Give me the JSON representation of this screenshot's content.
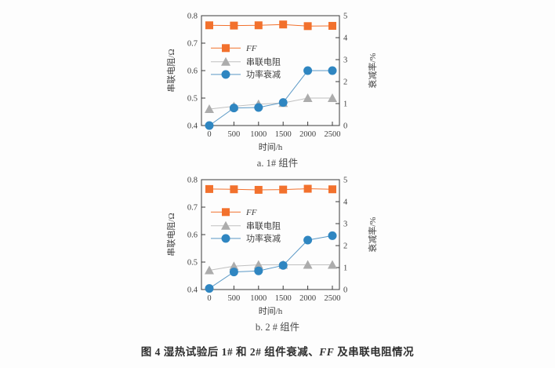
{
  "figure": {
    "caption": {
      "prefix": "图 4 湿热试验后 1# 和 2# 组件衰减、",
      "italic": "FF",
      "suffix": " 及串联电阻情况"
    }
  },
  "style": {
    "background": "#fdfdfd",
    "axis_color": "#3a3a3a",
    "text_color": "#3f3f3f",
    "ff_color": "#f2712d",
    "resistance_marker_color": "#acacac",
    "resistance_line_color": "#c0c0c0",
    "decay_marker_color": "#2f86c1",
    "decay_line_color": "#5b99c6"
  },
  "chart_data": [
    {
      "type": "line",
      "subtitle": "a. 1# 组件",
      "xlabel": "时间/h",
      "ylabel_left": "串联电阻/Ω",
      "ylabel_right": "衰减率/%",
      "x": [
        0,
        500,
        1000,
        1500,
        2000,
        2500
      ],
      "xlim": [
        0,
        2500
      ],
      "ylim_left": [
        0.4,
        0.8
      ],
      "yticks_left": [
        0.4,
        0.5,
        0.6,
        0.7,
        0.8
      ],
      "ylim_right": [
        0,
        5
      ],
      "yticks_right": [
        0,
        1,
        2,
        3,
        4,
        5
      ],
      "grid": false,
      "legend_position": "inside-upper-left",
      "series": [
        {
          "key": "ff",
          "name": "FF",
          "italic": true,
          "axis": "left",
          "marker": "square",
          "color": "#f2712d",
          "line_color": "#f2712d",
          "values": [
            0.765,
            0.764,
            0.765,
            0.768,
            0.762,
            0.763
          ]
        },
        {
          "key": "series-resistance",
          "name": "串联电阻",
          "axis": "left",
          "marker": "triangle",
          "color": "#acacac",
          "line_color": "#c0c0c0",
          "values": [
            0.46,
            0.47,
            0.478,
            0.482,
            0.5,
            0.5
          ]
        },
        {
          "key": "power-decay",
          "name": "功率衰减",
          "axis": "right",
          "marker": "circle",
          "color": "#2f86c1",
          "line_color": "#5b99c6",
          "values": [
            0,
            0.8,
            0.82,
            1.05,
            2.5,
            2.5
          ]
        }
      ]
    },
    {
      "type": "line",
      "subtitle": "b. 2 # 组件",
      "xlabel": "时间/h",
      "ylabel_left": "串联电阻/Ω",
      "ylabel_right": "衰减率/%",
      "x": [
        0,
        500,
        1000,
        1500,
        2000,
        2500
      ],
      "xlim": [
        0,
        2500
      ],
      "ylim_left": [
        0.4,
        0.8
      ],
      "yticks_left": [
        0.4,
        0.5,
        0.6,
        0.7,
        0.8
      ],
      "ylim_right": [
        0,
        5
      ],
      "yticks_right": [
        0,
        1,
        2,
        3,
        4,
        5
      ],
      "grid": false,
      "legend_position": "inside-upper-left",
      "series": [
        {
          "key": "ff",
          "name": "FF",
          "italic": true,
          "axis": "left",
          "marker": "square",
          "color": "#f2712d",
          "line_color": "#f2712d",
          "values": [
            0.766,
            0.765,
            0.763,
            0.764,
            0.767,
            0.765
          ]
        },
        {
          "key": "series-resistance",
          "name": "串联电阻",
          "axis": "left",
          "marker": "triangle",
          "color": "#acacac",
          "line_color": "#c0c0c0",
          "values": [
            0.47,
            0.485,
            0.49,
            0.49,
            0.49,
            0.49
          ]
        },
        {
          "key": "power-decay",
          "name": "功率衰减",
          "axis": "right",
          "marker": "circle",
          "color": "#2f86c1",
          "line_color": "#5b99c6",
          "values": [
            0.05,
            0.8,
            0.85,
            1.1,
            2.25,
            2.45
          ]
        }
      ]
    }
  ]
}
